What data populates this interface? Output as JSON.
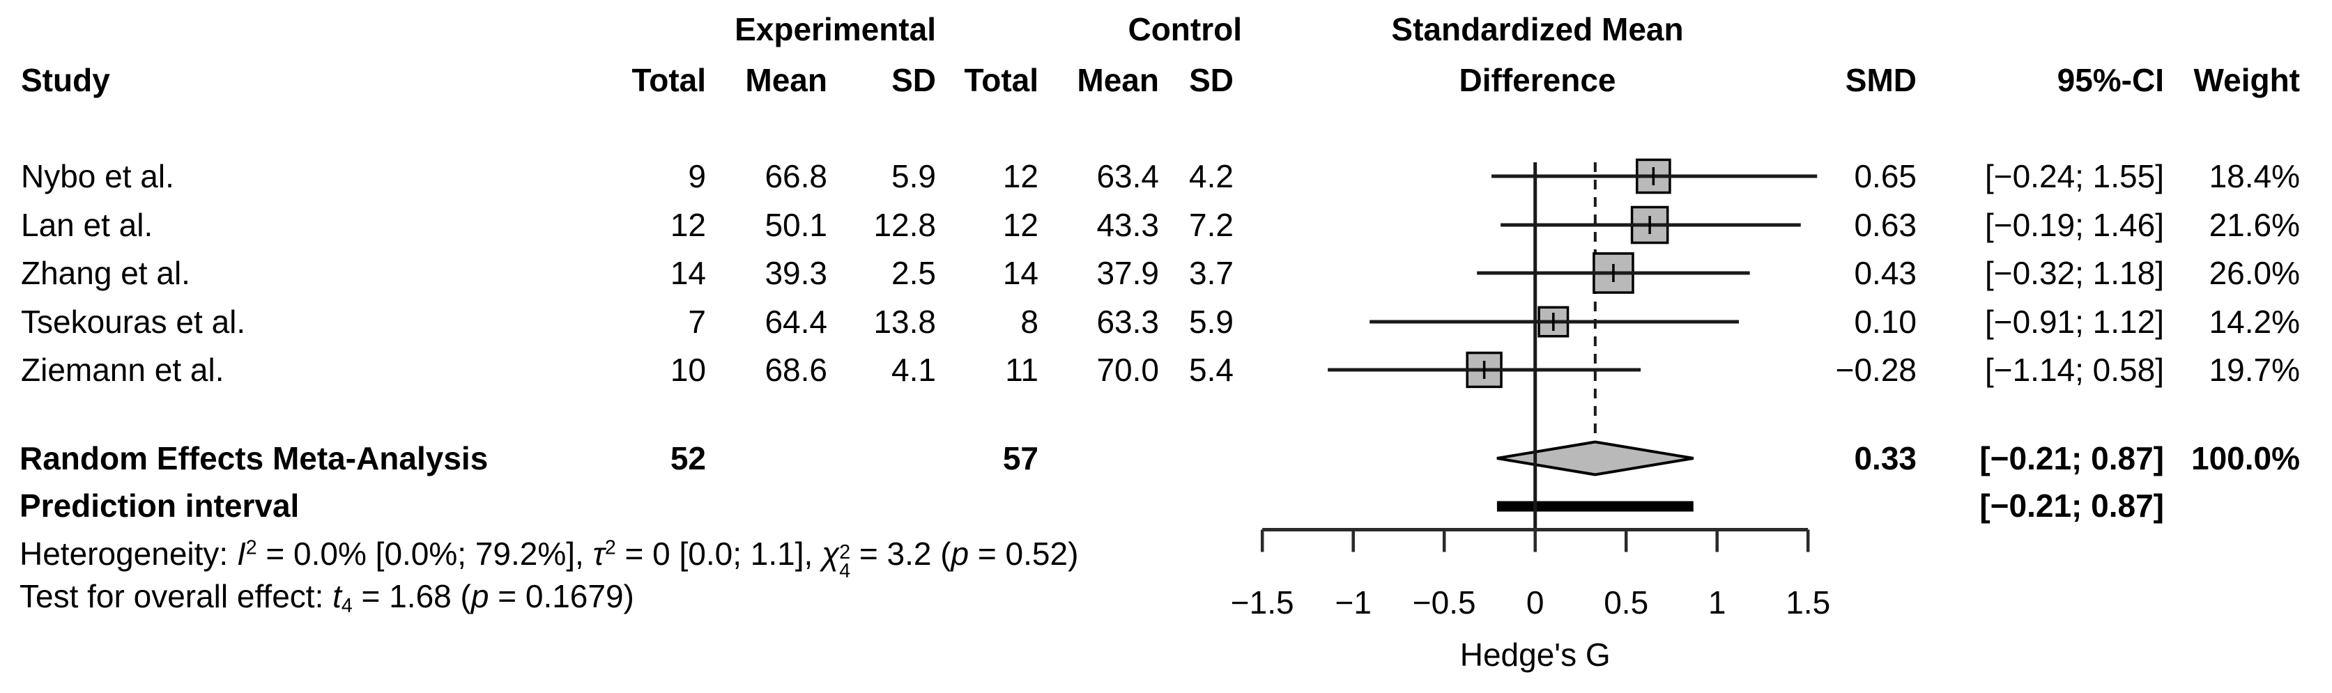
{
  "figure": {
    "kind": "forest-plot-meta-analysis",
    "background": "#ffffff",
    "text_color": "#000000",
    "square_fill": "#b9b9b9",
    "diamond_fill": "#b9b9b9",
    "line_color": "#1a1a1a",
    "axis_color": "#2a2a2a",
    "bar_color": "#000000"
  },
  "header": {
    "study": "Study",
    "group_experimental": "Experimental",
    "group_control": "Control",
    "total": "Total",
    "mean": "Mean",
    "sd": "SD",
    "effect_line1": "Standardized Mean",
    "effect_line2": "Difference",
    "smd": "SMD",
    "ci": "95%-CI",
    "weight": "Weight"
  },
  "chart_data": {
    "type": "scatter",
    "variant": "forest_plot",
    "title": "Standardized Mean Difference",
    "xlabel": "Hedge's G",
    "xlim": [
      -1.5,
      1.5
    ],
    "x_ticks": [
      -1.5,
      -1,
      -0.5,
      0,
      0.5,
      1,
      1.5
    ],
    "x_tick_labels": [
      "−1.5",
      "−1",
      "−0.5",
      "0",
      "0.5",
      "1",
      "1.5"
    ],
    "reference_line": 0,
    "pooled_effect_dashed_line": 0.33,
    "grid": false,
    "studies": [
      {
        "name": "Nybo et al.",
        "exp_total": "9",
        "exp_mean": "66.8",
        "exp_sd": "5.9",
        "ctrl_total": "12",
        "ctrl_mean": "63.4",
        "ctrl_sd": "4.2",
        "smd": 0.65,
        "ci_low": -0.24,
        "ci_high": 1.55,
        "weight": 18.4,
        "smd_label": "0.65",
        "ci_label": "[−0.24; 1.55]",
        "weight_label": "18.4%"
      },
      {
        "name": "Lan et al.",
        "exp_total": "12",
        "exp_mean": "50.1",
        "exp_sd": "12.8",
        "ctrl_total": "12",
        "ctrl_mean": "43.3",
        "ctrl_sd": "7.2",
        "smd": 0.63,
        "ci_low": -0.19,
        "ci_high": 1.46,
        "weight": 21.6,
        "smd_label": "0.63",
        "ci_label": "[−0.19; 1.46]",
        "weight_label": "21.6%"
      },
      {
        "name": "Zhang et al.",
        "exp_total": "14",
        "exp_mean": "39.3",
        "exp_sd": "2.5",
        "ctrl_total": "14",
        "ctrl_mean": "37.9",
        "ctrl_sd": "3.7",
        "smd": 0.43,
        "ci_low": -0.32,
        "ci_high": 1.18,
        "weight": 26.0,
        "smd_label": "0.43",
        "ci_label": "[−0.32; 1.18]",
        "weight_label": "26.0%"
      },
      {
        "name": "Tsekouras et al.",
        "exp_total": "7",
        "exp_mean": "64.4",
        "exp_sd": "13.8",
        "ctrl_total": "8",
        "ctrl_mean": "63.3",
        "ctrl_sd": "5.9",
        "smd": 0.1,
        "ci_low": -0.91,
        "ci_high": 1.12,
        "weight": 14.2,
        "smd_label": "0.10",
        "ci_label": "[−0.91; 1.12]",
        "weight_label": "14.2%"
      },
      {
        "name": "Ziemann et al.",
        "exp_total": "10",
        "exp_mean": "68.6",
        "exp_sd": "4.1",
        "ctrl_total": "11",
        "ctrl_mean": "70.0",
        "ctrl_sd": "5.4",
        "smd": -0.28,
        "ci_low": -1.14,
        "ci_high": 0.58,
        "weight": 19.7,
        "smd_label": "−0.28",
        "ci_label": "[−1.14; 0.58]",
        "weight_label": "19.7%"
      }
    ],
    "pooled": {
      "label": "Random Effects Meta-Analysis",
      "exp_total": "52",
      "ctrl_total": "57",
      "smd": 0.33,
      "ci_low": -0.21,
      "ci_high": 0.87,
      "smd_label": "0.33",
      "ci_label": "[−0.21; 0.87]",
      "weight_label": "100.0%"
    },
    "prediction_interval": {
      "label": "Prediction interval",
      "ci_low": -0.21,
      "ci_high": 0.87,
      "ci_label": "[−0.21; 0.87]"
    },
    "heterogeneity_text": "Heterogeneity: I2 = 0.0% [0.0%; 79.2%], tau2 = 0 [0.0; 1.1], chi2(4) = 3.2 (p = 0.52)",
    "overall_effect_text": "Test for overall effect: t(4) = 1.68 (p = 0.1679)"
  },
  "heterogeneity_segments": [
    {
      "t": "Heterogeneity: "
    },
    {
      "t": "I",
      "s": "i"
    },
    {
      "t": "2",
      "s": "sup"
    },
    {
      "t": " = 0.0% [0.0%; 79.2%], "
    },
    {
      "t": "τ",
      "s": "i"
    },
    {
      "t": "2",
      "s": "sup"
    },
    {
      "t": " = 0 [0.0; 1.1], "
    },
    {
      "t": "χ",
      "s": "i"
    },
    {
      "s": "stack",
      "sup": "2",
      "sub": "4"
    },
    {
      "t": " = 3.2 ("
    },
    {
      "t": "p",
      "s": "i"
    },
    {
      "t": " = 0.52)"
    }
  ],
  "overall_test_segments": [
    {
      "t": "Test for overall effect: "
    },
    {
      "t": "t",
      "s": "i"
    },
    {
      "t": "4",
      "s": "sub"
    },
    {
      "t": " = 1.68 ("
    },
    {
      "t": "p",
      "s": "i"
    },
    {
      "t": " = 0.1679)"
    }
  ],
  "axis": {
    "label": "Hedge's G"
  }
}
